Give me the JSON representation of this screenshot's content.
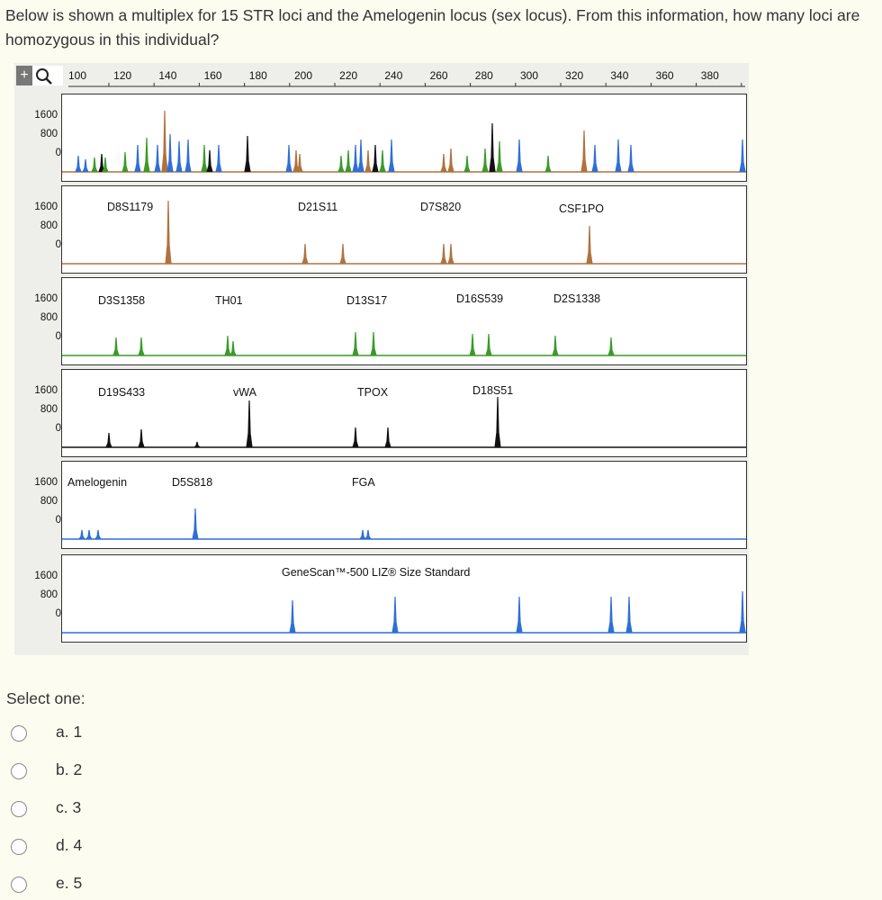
{
  "question": "Below is shown a multiplex for 15 STR loci and the Amelogenin locus (sex locus). From this information, how many loci are homozygous in this individual?",
  "figure": {
    "ruler_labels": [
      "100",
      "120",
      "140",
      "160",
      "180",
      "200",
      "220",
      "240",
      "260",
      "280",
      "300",
      "320",
      "340",
      "360",
      "380"
    ],
    "y_ticks": [
      "1600",
      "800",
      "0"
    ],
    "panels": [
      {
        "color": "#b0723f",
        "loci": []
      },
      {
        "color": "#b0723f",
        "loci": [
          "D8S1179",
          "D21S11",
          "D7S820",
          "CSF1PO"
        ]
      },
      {
        "color": "#3a9a2a",
        "loci": [
          "D3S1358",
          "TH01",
          "D13S17",
          "D16S539",
          "D2S1338"
        ]
      },
      {
        "color": "#111111",
        "loci": [
          "D19S433",
          "vWA",
          "TPOX",
          "D18S51"
        ]
      },
      {
        "color": "#2f6fd6",
        "loci": [
          "Amelogenin",
          "D5S818",
          "FGA"
        ]
      },
      {
        "color": "#2f6fd6",
        "loci": []
      }
    ],
    "size_standard": "GeneScan™-500 LIZ® Size Standard"
  },
  "select_label": "Select one:",
  "options": [
    "a. 1",
    "b. 2",
    "c. 3",
    "d. 4",
    "e. 5"
  ]
}
